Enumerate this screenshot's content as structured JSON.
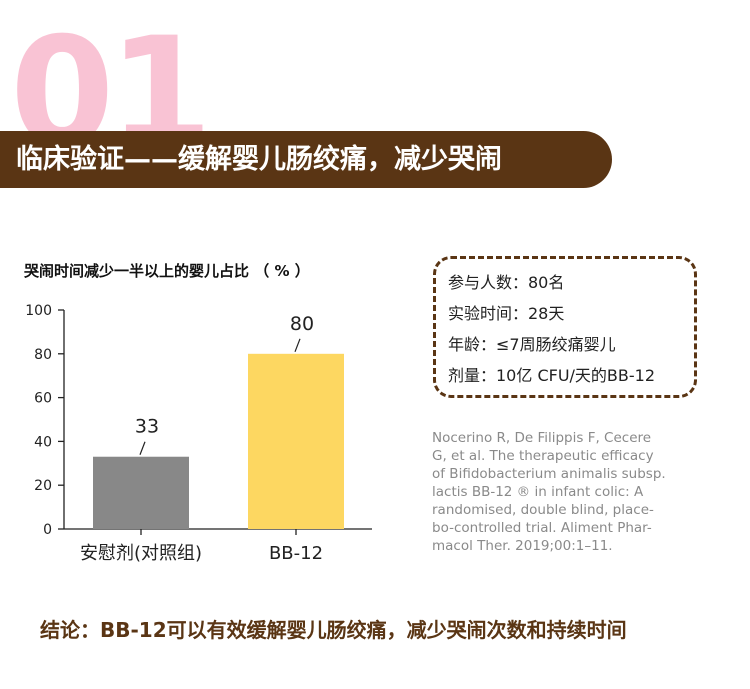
{
  "header": {
    "number": "01",
    "title": "临床验证——缓解婴儿肠绞痛，减少哭闹"
  },
  "chart_data": {
    "type": "bar",
    "title": "哭闹时间减少一半以上的婴儿占比 （ % ）",
    "categories": [
      "安慰剂(对照组)",
      "BB-12"
    ],
    "values": [
      33,
      80
    ],
    "value_labels": [
      "33",
      "80"
    ],
    "yticks": [
      "0",
      "20",
      "40",
      "60",
      "80",
      "100"
    ],
    "ylim": [
      0,
      100
    ],
    "colors": [
      "#888888",
      "#fdd761"
    ],
    "grid": false,
    "legend": "none"
  },
  "info_box": {
    "lines": [
      "参与人数：80名",
      "实验时间：28天",
      "年龄：≤7周肠绞痛婴儿",
      "剂量：10亿 CFU/天的BB-12"
    ]
  },
  "citation": {
    "lines": [
      "Nocerino R, De Filippis F, Cecere",
      "G, et al. The therapeutic efficacy",
      "of Bifidobacterium animalis subsp.",
      "lactis BB-12 ® in infant colic: A",
      "randomised, double blind, place-",
      "bo-controlled trial. Aliment Phar-",
      "macol Ther. 2019;00:1–11."
    ]
  },
  "conclusion": {
    "text": "结论：BB-12可以有效缓解婴儿肠绞痛，减少哭闹次数和持续时间"
  },
  "colors": {
    "brown": "#5a3514",
    "pink": "#f9c3d4",
    "bar_placebo": "#888888",
    "bar_bb12": "#fdd761"
  }
}
